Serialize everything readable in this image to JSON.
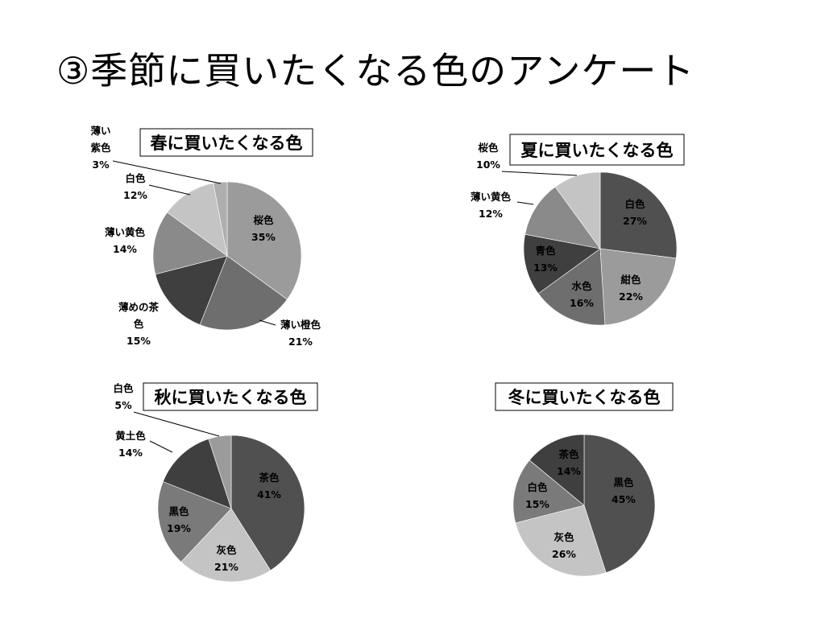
{
  "slide": {
    "title": "③季節に買いたくなる色のアンケート"
  },
  "colors": {
    "background": "#ffffff",
    "text": "#000000",
    "slice_palette": [
      "#9b9b9b",
      "#6e6e6e",
      "#3f3f3f",
      "#8a8a8a",
      "#c4c4c4",
      "#aeaeae",
      "#505050",
      "#7a7a7a"
    ]
  },
  "chart_data": [
    {
      "type": "pie",
      "title": "春に買いたくなる色",
      "slices": [
        {
          "label": "桜色",
          "value": 35,
          "pct": "35%",
          "color": "#9b9b9b",
          "inside": true
        },
        {
          "label": "薄い橙色",
          "value": 21,
          "pct": "21%",
          "color": "#6e6e6e",
          "inside": false
        },
        {
          "label": "薄めの茶色",
          "value": 15,
          "pct": "15%",
          "color": "#3f3f3f",
          "inside": false
        },
        {
          "label": "薄い黄色",
          "value": 14,
          "pct": "14%",
          "color": "#8a8a8a",
          "inside": false
        },
        {
          "label": "白色",
          "value": 12,
          "pct": "12%",
          "color": "#c4c4c4",
          "inside": false
        },
        {
          "label": "薄い紫色",
          "value": 3,
          "pct": "3%",
          "color": "#aeaeae",
          "inside": false
        }
      ]
    },
    {
      "type": "pie",
      "title": "夏に買いたくなる色",
      "slices": [
        {
          "label": "白色",
          "value": 27,
          "pct": "27%",
          "color": "#505050",
          "inside": true
        },
        {
          "label": "紺色",
          "value": 22,
          "pct": "22%",
          "color": "#9b9b9b",
          "inside": true
        },
        {
          "label": "水色",
          "value": 16,
          "pct": "16%",
          "color": "#6e6e6e",
          "inside": true
        },
        {
          "label": "青色",
          "value": 13,
          "pct": "13%",
          "color": "#3f3f3f",
          "inside": true
        },
        {
          "label": "薄い黄色",
          "value": 12,
          "pct": "12%",
          "color": "#8a8a8a",
          "inside": false
        },
        {
          "label": "桜色",
          "value": 10,
          "pct": "10%",
          "color": "#c4c4c4",
          "inside": false
        }
      ]
    },
    {
      "type": "pie",
      "title": "秋に買いたくなる色",
      "slices": [
        {
          "label": "茶色",
          "value": 41,
          "pct": "41%",
          "color": "#505050",
          "inside": true
        },
        {
          "label": "灰色",
          "value": 21,
          "pct": "21%",
          "color": "#c4c4c4",
          "inside": true
        },
        {
          "label": "黒色",
          "value": 19,
          "pct": "19%",
          "color": "#7a7a7a",
          "inside": true
        },
        {
          "label": "黄土色",
          "value": 14,
          "pct": "14%",
          "color": "#3f3f3f",
          "inside": false
        },
        {
          "label": "白色",
          "value": 5,
          "pct": "5%",
          "color": "#9b9b9b",
          "inside": false
        }
      ]
    },
    {
      "type": "pie",
      "title": "冬に買いたくなる色",
      "slices": [
        {
          "label": "黒色",
          "value": 45,
          "pct": "45%",
          "color": "#505050",
          "inside": true
        },
        {
          "label": "灰色",
          "value": 26,
          "pct": "26%",
          "color": "#c4c4c4",
          "inside": true
        },
        {
          "label": "白色",
          "value": 15,
          "pct": "15%",
          "color": "#7a7a7a",
          "inside": true
        },
        {
          "label": "茶色",
          "value": 14,
          "pct": "14%",
          "color": "#3f3f3f",
          "inside": true
        }
      ]
    }
  ]
}
